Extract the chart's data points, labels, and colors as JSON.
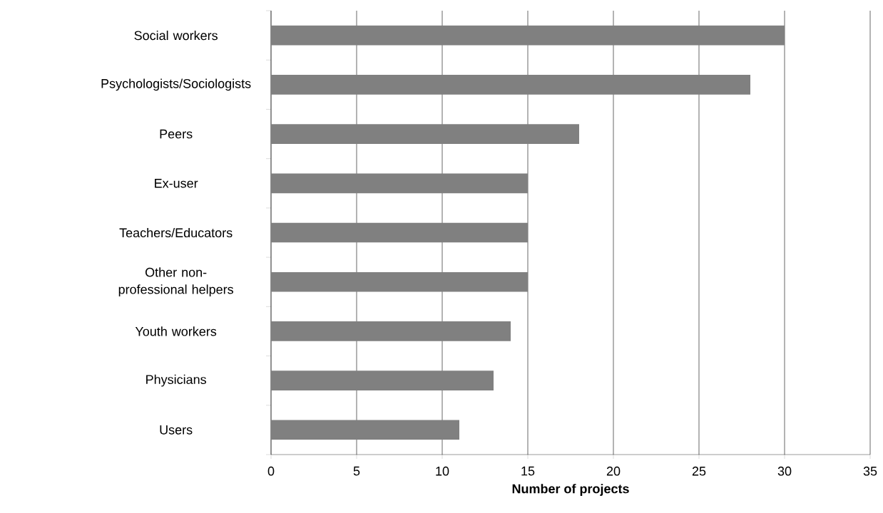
{
  "chart_data": {
    "type": "bar",
    "orientation": "horizontal",
    "xlabel": "Number of projects",
    "categories": [
      "Social workers",
      "Psychologists/Sociologists",
      "Peers",
      "Ex-user",
      "Teachers/Educators",
      "Other non-professional helpers",
      "Youth workers",
      "Physicians",
      "Users"
    ],
    "values": [
      30,
      28,
      18,
      15,
      15,
      15,
      14,
      13,
      11
    ],
    "color": "#808080",
    "xlim": [
      0,
      35
    ],
    "xticks": [
      0,
      5,
      10,
      15,
      20,
      25,
      30,
      35
    ],
    "grid": "x"
  }
}
